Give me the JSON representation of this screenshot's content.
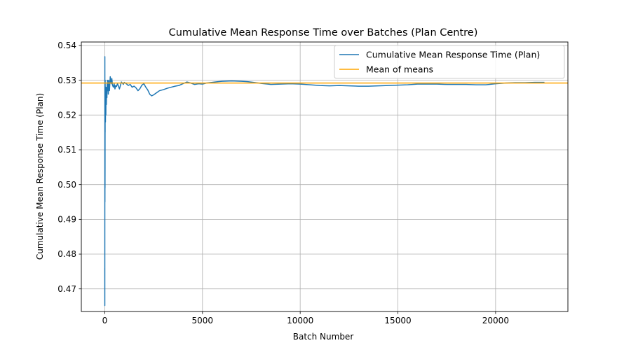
{
  "chart_data": {
    "type": "line",
    "title": "Cumulative Mean Response Time over Batches (Plan Centre)",
    "xlabel": "Batch Number",
    "ylabel": "Cumulative Mean Response Time (Plan)",
    "xlim": [
      -1200,
      23700
    ],
    "ylim": [
      0.4635,
      0.541
    ],
    "xticks": [
      0,
      5000,
      10000,
      15000,
      20000
    ],
    "yticks": [
      0.47,
      0.48,
      0.49,
      0.5,
      0.51,
      0.52,
      0.53,
      0.54
    ],
    "grid": true,
    "legend_position": "top-right",
    "series": [
      {
        "name": "Cumulative Mean Response Time (Plan)",
        "color": "#1f77b4",
        "x": [
          0,
          2,
          4,
          6,
          8,
          10,
          12,
          14,
          16,
          18,
          20,
          25,
          30,
          35,
          40,
          45,
          50,
          55,
          60,
          70,
          80,
          90,
          100,
          110,
          120,
          130,
          140,
          150,
          160,
          170,
          180,
          190,
          200,
          220,
          240,
          260,
          280,
          300,
          330,
          360,
          400,
          440,
          480,
          520,
          560,
          600,
          650,
          700,
          750,
          800,
          850,
          900,
          950,
          1000,
          1100,
          1200,
          1300,
          1400,
          1500,
          1600,
          1700,
          1800,
          1900,
          2000,
          2100,
          2200,
          2300,
          2400,
          2500,
          2600,
          2700,
          2800,
          3000,
          3200,
          3400,
          3600,
          3800,
          4000,
          4200,
          4400,
          4600,
          4800,
          5000,
          5200,
          5500,
          5800,
          6000,
          6500,
          7000,
          7300,
          7600,
          8000,
          8500,
          9000,
          9500,
          10000,
          10500,
          11000,
          11500,
          12000,
          12500,
          13000,
          13500,
          14000,
          14500,
          15000,
          15500,
          16000,
          16500,
          17000,
          17500,
          18000,
          18500,
          19000,
          19500,
          20000,
          20500,
          21000,
          21500,
          22000,
          22500
        ],
        "y": [
          0.476,
          0.4652,
          0.5368,
          0.52,
          0.495,
          0.51,
          0.499,
          0.505,
          0.52,
          0.515,
          0.53,
          0.522,
          0.525,
          0.518,
          0.526,
          0.523,
          0.528,
          0.52,
          0.525,
          0.527,
          0.523,
          0.526,
          0.528,
          0.525,
          0.529,
          0.527,
          0.53,
          0.528,
          0.527,
          0.529,
          0.526,
          0.528,
          0.53,
          0.529,
          0.527,
          0.529,
          0.531,
          0.53,
          0.529,
          0.5305,
          0.5285,
          0.528,
          0.529,
          0.5275,
          0.5285,
          0.5282,
          0.529,
          0.5283,
          0.5275,
          0.5285,
          0.5295,
          0.5292,
          0.5288,
          0.5294,
          0.529,
          0.5285,
          0.5288,
          0.528,
          0.5283,
          0.5278,
          0.527,
          0.5276,
          0.5286,
          0.529,
          0.528,
          0.5272,
          0.526,
          0.5255,
          0.5258,
          0.5262,
          0.5266,
          0.527,
          0.5273,
          0.5277,
          0.528,
          0.5283,
          0.5285,
          0.529,
          0.5295,
          0.5292,
          0.5288,
          0.529,
          0.5289,
          0.5292,
          0.5294,
          0.5296,
          0.5297,
          0.5298,
          0.5297,
          0.5296,
          0.5294,
          0.5291,
          0.5288,
          0.5289,
          0.529,
          0.5289,
          0.5287,
          0.5285,
          0.5284,
          0.5285,
          0.5284,
          0.5283,
          0.5283,
          0.5284,
          0.5285,
          0.5286,
          0.5287,
          0.5289,
          0.5289,
          0.5289,
          0.5288,
          0.5288,
          0.5288,
          0.5287,
          0.5287,
          0.529,
          0.5292,
          0.5293,
          0.5293,
          0.5294,
          0.5294
        ]
      },
      {
        "name": "Mean of means",
        "color": "#ffa500",
        "y_constant": 0.5292
      }
    ]
  }
}
